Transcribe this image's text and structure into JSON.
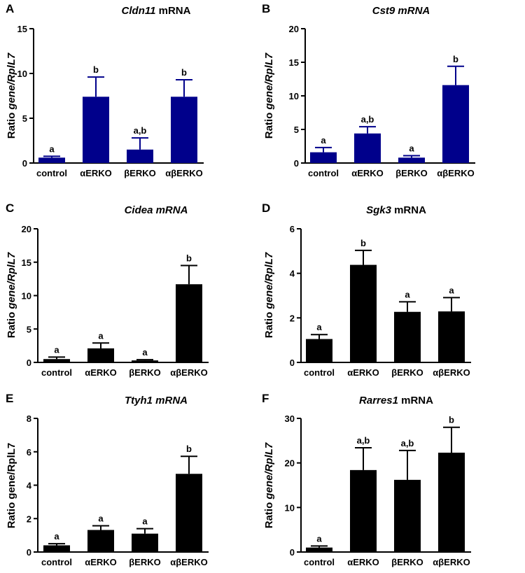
{
  "chart_data": [
    {
      "type": "bar",
      "panel": "A",
      "title_italic": "Cldn11",
      "title_normal": " mRNA",
      "ylabel_normal": "Ratio ",
      "ylabel_italic": "gene/RplL7",
      "categories": [
        "control",
        "αERKO",
        "βERKO",
        "αβERKO"
      ],
      "values": [
        0.6,
        7.4,
        1.5,
        7.4
      ],
      "errors": [
        0.15,
        2.2,
        1.3,
        1.9
      ],
      "labels": [
        "a",
        "b",
        "a,b",
        "b"
      ],
      "ylim": [
        0,
        15
      ],
      "yticks": [
        0,
        5,
        10,
        15
      ],
      "color": "#00008B"
    },
    {
      "type": "bar",
      "panel": "B",
      "title_italic": "Cst9 mRNA",
      "title_normal": "",
      "ylabel_normal": "Ratio ",
      "ylabel_italic": "gene/RplL7",
      "categories": [
        "control",
        "αERKO",
        "βERKO",
        "αβERKO"
      ],
      "values": [
        1.6,
        4.4,
        0.8,
        11.6
      ],
      "errors": [
        0.7,
        1.0,
        0.3,
        2.8
      ],
      "labels": [
        "a",
        "a,b",
        "a",
        "b"
      ],
      "ylim": [
        0,
        20
      ],
      "yticks": [
        0,
        5,
        10,
        15,
        20
      ],
      "color": "#00008B"
    },
    {
      "type": "bar",
      "panel": "C",
      "title_italic": "Cidea mRNA",
      "title_normal": "",
      "ylabel_normal": "Ratio ",
      "ylabel_italic": "gene/RplL7",
      "categories": [
        "control",
        "αERKO",
        "βERKO",
        "αβERKO"
      ],
      "values": [
        0.5,
        2.1,
        0.3,
        11.7
      ],
      "errors": [
        0.3,
        0.8,
        0.1,
        2.8
      ],
      "labels": [
        "a",
        "a",
        "a",
        "b"
      ],
      "ylim": [
        0,
        20
      ],
      "yticks": [
        0,
        5,
        10,
        15,
        20
      ],
      "color": "#000000"
    },
    {
      "type": "bar",
      "panel": "D",
      "title_italic": "Sgk3",
      "title_normal": " mRNA",
      "ylabel_normal": "Ratio ",
      "ylabel_italic": "gene/RplL7",
      "categories": [
        "control",
        "αERKO",
        "βERKO",
        "αβERKO"
      ],
      "values": [
        1.05,
        4.38,
        2.27,
        2.29
      ],
      "errors": [
        0.2,
        0.65,
        0.45,
        0.62
      ],
      "labels": [
        "a",
        "b",
        "a",
        "a"
      ],
      "ylim": [
        0,
        6
      ],
      "yticks": [
        0,
        2,
        4,
        6
      ],
      "color": "#000000"
    },
    {
      "type": "bar",
      "panel": "E",
      "title_italic": "Ttyh1 mRNA",
      "title_normal": "",
      "ylabel_normal": "Ratio gene/RplL7",
      "ylabel_italic": "",
      "categories": [
        "control",
        "αERKO",
        "βERKO",
        "αβERKO"
      ],
      "values": [
        0.4,
        1.32,
        1.1,
        4.68
      ],
      "errors": [
        0.1,
        0.25,
        0.3,
        1.05
      ],
      "labels": [
        "a",
        "a",
        "a",
        "b"
      ],
      "ylim": [
        0,
        8
      ],
      "yticks": [
        0,
        2,
        4,
        6,
        8
      ],
      "color": "#000000"
    },
    {
      "type": "bar",
      "panel": "F",
      "title_italic": "Rarres1",
      "title_normal": " mRNA",
      "ylabel_normal": "Ratio ",
      "ylabel_italic": "gene/RplL7",
      "categories": [
        "control",
        "αERKO",
        "βERKO",
        "αβERKO"
      ],
      "values": [
        1.0,
        18.4,
        16.2,
        22.3
      ],
      "errors": [
        0.35,
        5.0,
        6.6,
        5.7
      ],
      "labels": [
        "a",
        "a,b",
        "a,b",
        "b"
      ],
      "ylim": [
        0,
        30
      ],
      "yticks": [
        0,
        10,
        20,
        30
      ],
      "color": "#000000"
    }
  ]
}
